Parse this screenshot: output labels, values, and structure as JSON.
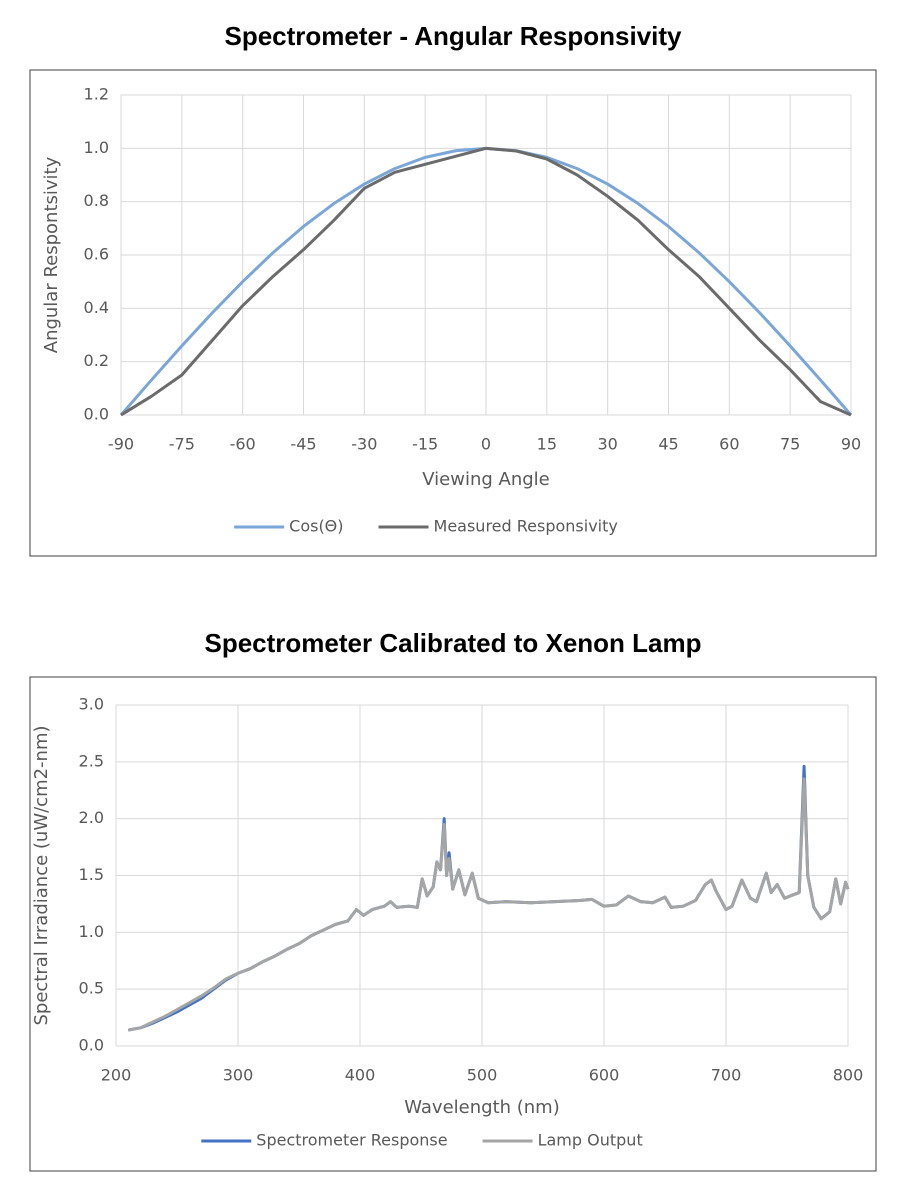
{
  "chart_data": [
    {
      "type": "line",
      "title": "Spectrometer - Angular Responsivity",
      "xlabel": "Viewing Angle",
      "ylabel": "Angular Respontsivity",
      "x": [
        -90,
        -82.5,
        -75,
        -67.5,
        -60,
        -52.5,
        -45,
        -37.5,
        -30,
        -22.5,
        -15,
        -7.5,
        0,
        7.5,
        15,
        22.5,
        30,
        37.5,
        45,
        52.5,
        60,
        67.5,
        75,
        82.5,
        90
      ],
      "series": [
        {
          "name": "Cos(Θ)",
          "color": "#7aa6d8",
          "values": [
            0,
            0.131,
            0.259,
            0.383,
            0.5,
            0.609,
            0.707,
            0.793,
            0.866,
            0.924,
            0.966,
            0.991,
            1,
            0.991,
            0.966,
            0.924,
            0.866,
            0.793,
            0.707,
            0.609,
            0.5,
            0.383,
            0.259,
            0.131,
            0
          ]
        },
        {
          "name": "Measured Responsivity",
          "color": "#6b6b6b",
          "values": [
            0,
            0.07,
            0.15,
            0.28,
            0.41,
            0.52,
            0.62,
            0.73,
            0.85,
            0.91,
            0.94,
            0.97,
            1.0,
            0.99,
            0.96,
            0.9,
            0.82,
            0.73,
            0.62,
            0.52,
            0.4,
            0.28,
            0.17,
            0.05,
            0
          ]
        }
      ],
      "xlim": [
        -90,
        90
      ],
      "xticks": [
        -90,
        -75,
        -60,
        -45,
        -30,
        -15,
        0,
        15,
        30,
        45,
        60,
        75,
        90
      ],
      "ylim": [
        0,
        1.2
      ],
      "yticks": [
        {
          "value": 0,
          "label": "0.0"
        },
        0.2,
        0.4,
        0.6,
        0.8,
        {
          "value": 1,
          "label": "1.0"
        },
        1.2
      ],
      "grid": true,
      "legend": "bottom"
    },
    {
      "type": "line",
      "title": "Spectrometer Calibrated to Xenon Lamp",
      "xlabel": "Wavelength (nm)",
      "ylabel": "Spectral Irradiance (uW/cm2-nm)",
      "x": [
        210,
        220,
        230,
        240,
        250,
        260,
        270,
        280,
        290,
        300,
        310,
        320,
        330,
        340,
        350,
        360,
        370,
        380,
        390,
        397,
        403,
        410,
        420,
        425,
        430,
        440,
        447,
        451,
        455,
        460,
        463,
        466,
        469,
        471,
        473,
        476,
        481,
        486,
        492,
        497,
        505,
        520,
        540,
        560,
        580,
        590,
        600,
        610,
        620,
        630,
        640,
        650,
        655,
        665,
        675,
        683,
        688,
        692,
        700,
        705,
        713,
        720,
        725,
        733,
        737,
        742,
        748,
        755,
        760,
        764,
        767,
        772,
        778,
        785,
        790,
        794,
        798,
        800
      ],
      "series": [
        {
          "name": "Spectrometer Response",
          "color": "#4472c4",
          "values": [
            0.14,
            0.16,
            0.2,
            0.25,
            0.3,
            0.36,
            0.42,
            0.5,
            0.58,
            0.64,
            0.68,
            0.74,
            0.79,
            0.85,
            0.9,
            0.97,
            1.02,
            1.07,
            1.1,
            1.2,
            1.15,
            1.2,
            1.23,
            1.27,
            1.22,
            1.23,
            1.22,
            1.47,
            1.32,
            1.4,
            1.62,
            1.55,
            2.0,
            1.5,
            1.7,
            1.38,
            1.55,
            1.33,
            1.52,
            1.3,
            1.26,
            1.27,
            1.26,
            1.27,
            1.28,
            1.29,
            1.23,
            1.24,
            1.32,
            1.27,
            1.26,
            1.31,
            1.22,
            1.23,
            1.28,
            1.42,
            1.46,
            1.36,
            1.2,
            1.23,
            1.46,
            1.3,
            1.27,
            1.52,
            1.35,
            1.42,
            1.3,
            1.33,
            1.35,
            2.46,
            1.5,
            1.22,
            1.12,
            1.18,
            1.47,
            1.25,
            1.44,
            1.38
          ]
        },
        {
          "name": "Lamp Output",
          "color": "#a5a5a5",
          "values": [
            0.14,
            0.16,
            0.21,
            0.26,
            0.32,
            0.38,
            0.44,
            0.51,
            0.59,
            0.64,
            0.68,
            0.74,
            0.79,
            0.85,
            0.9,
            0.97,
            1.02,
            1.07,
            1.1,
            1.2,
            1.15,
            1.2,
            1.23,
            1.27,
            1.22,
            1.23,
            1.22,
            1.47,
            1.32,
            1.4,
            1.62,
            1.55,
            1.95,
            1.5,
            1.65,
            1.38,
            1.55,
            1.33,
            1.52,
            1.3,
            1.26,
            1.27,
            1.26,
            1.27,
            1.28,
            1.29,
            1.23,
            1.24,
            1.32,
            1.27,
            1.26,
            1.31,
            1.22,
            1.23,
            1.28,
            1.42,
            1.46,
            1.36,
            1.2,
            1.23,
            1.46,
            1.3,
            1.27,
            1.52,
            1.35,
            1.42,
            1.3,
            1.33,
            1.35,
            2.35,
            1.5,
            1.22,
            1.12,
            1.18,
            1.47,
            1.25,
            1.44,
            1.38
          ]
        }
      ],
      "xlim": [
        200,
        800
      ],
      "xticks": [
        200,
        300,
        400,
        500,
        600,
        700,
        800
      ],
      "ylim": [
        0,
        3
      ],
      "yticks": [
        {
          "value": 0,
          "label": "0.0"
        },
        0.5,
        {
          "value": 1,
          "label": "1.0"
        },
        1.5,
        {
          "value": 2,
          "label": "2.0"
        },
        2.5,
        {
          "value": 3,
          "label": "3.0"
        }
      ],
      "grid": true,
      "legend": "bottom"
    }
  ]
}
